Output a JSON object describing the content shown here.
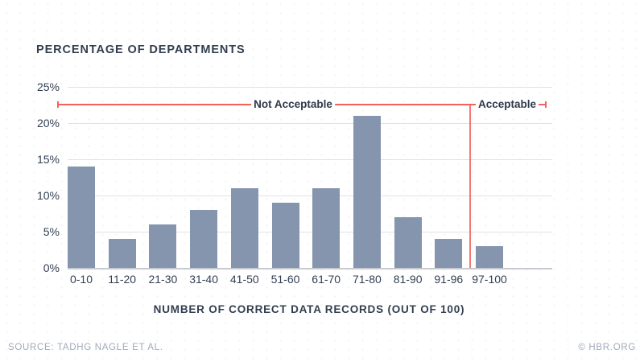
{
  "chart_data": {
    "type": "bar",
    "title": "PERCENTAGE OF DEPARTMENTS",
    "xlabel": "NUMBER OF CORRECT DATA RECORDS (OUT OF 100)",
    "ylabel": "",
    "categories": [
      "0-10",
      "11-20",
      "21-30",
      "31-40",
      "41-50",
      "51-60",
      "61-70",
      "71-80",
      "81-90",
      "91-96",
      "97-100"
    ],
    "values": [
      14,
      4,
      6,
      8,
      11,
      9,
      11,
      21,
      7,
      4,
      3
    ],
    "ylim": [
      0,
      25
    ],
    "y_ticks": [
      0,
      5,
      10,
      15,
      20,
      25
    ],
    "y_tick_labels": [
      "0%",
      "5%",
      "10%",
      "15%",
      "20%",
      "25%"
    ],
    "grid": true,
    "legend_position": "none",
    "bar_color": "#8595ad",
    "annotations": {
      "not_acceptable_label": "Not Acceptable",
      "acceptable_label": "Acceptable",
      "divider_after_category": "91-96",
      "line_color": "#f2615a"
    }
  },
  "footer": {
    "source": "SOURCE: TADHG NAGLE ET AL.",
    "credit": "© HBR.ORG"
  }
}
